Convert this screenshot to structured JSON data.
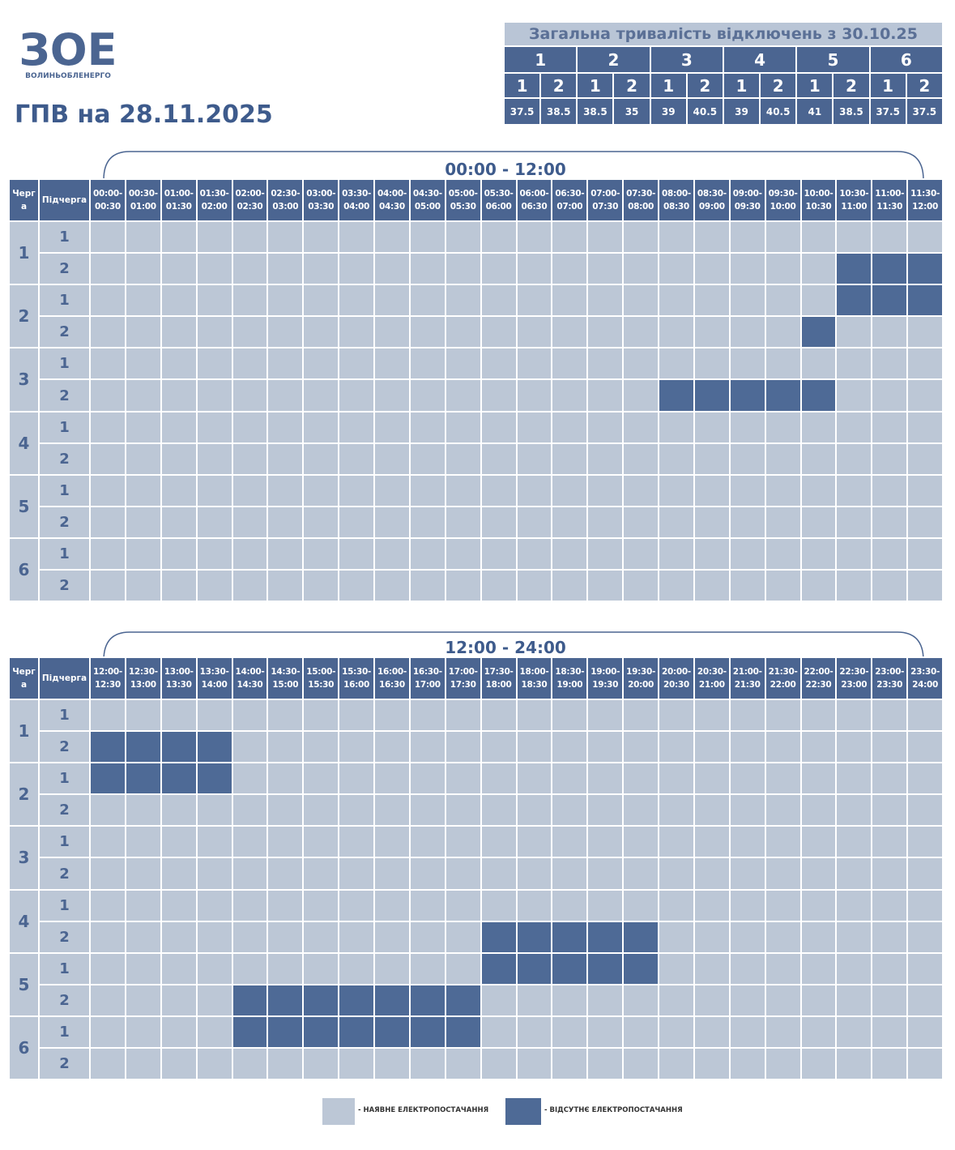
{
  "header": {
    "logo": "ЗОЕ",
    "logo_caption": "ВОЛИНЬОБЛЕНЕРГО",
    "title": "ГПВ на 28.11.2025"
  },
  "summary": {
    "title": "Загальна тривалість відключень з 30.10.25",
    "groups": [
      {
        "queue": "1",
        "subqueues": [
          {
            "name": "1",
            "hours": 37.5
          },
          {
            "name": "2",
            "hours": 38.5
          }
        ]
      },
      {
        "queue": "2",
        "subqueues": [
          {
            "name": "1",
            "hours": 38.5
          },
          {
            "name": "2",
            "hours": 35
          }
        ]
      },
      {
        "queue": "3",
        "subqueues": [
          {
            "name": "1",
            "hours": 39
          },
          {
            "name": "2",
            "hours": 40.5
          }
        ]
      },
      {
        "queue": "4",
        "subqueues": [
          {
            "name": "1",
            "hours": 39
          },
          {
            "name": "2",
            "hours": 40.5
          }
        ]
      },
      {
        "queue": "5",
        "subqueues": [
          {
            "name": "1",
            "hours": 41
          },
          {
            "name": "2",
            "hours": 38.5
          }
        ]
      },
      {
        "queue": "6",
        "subqueues": [
          {
            "name": "1",
            "hours": 37.5
          },
          {
            "name": "2",
            "hours": 37.5
          }
        ]
      }
    ]
  },
  "schedule": {
    "queue_label": "Черга",
    "subqueue_label": "Підчерга",
    "tables": [
      {
        "range": "00:00 - 12:00",
        "slots": [
          "00:00-00:30",
          "00:30-01:00",
          "01:00-01:30",
          "01:30-02:00",
          "02:00-02:30",
          "02:30-03:00",
          "03:00-03:30",
          "03:30-04:00",
          "04:00-04:30",
          "04:30-05:00",
          "05:00-05:30",
          "05:30-06:00",
          "06:00-06:30",
          "06:30-07:00",
          "07:00-07:30",
          "07:30-08:00",
          "08:00-08:30",
          "08:30-09:00",
          "09:00-09:30",
          "09:30-10:00",
          "10:00-10:30",
          "10:30-11:00",
          "11:00-11:30",
          "11:30-12:00"
        ],
        "groups": [
          {
            "queue": "1",
            "rows": [
              {
                "sub": "1",
                "state": [
                  0,
                  0,
                  0,
                  0,
                  0,
                  0,
                  0,
                  0,
                  0,
                  0,
                  0,
                  0,
                  0,
                  0,
                  0,
                  0,
                  0,
                  0,
                  0,
                  0,
                  0,
                  0,
                  0,
                  0
                ]
              },
              {
                "sub": "2",
                "state": [
                  0,
                  0,
                  0,
                  0,
                  0,
                  0,
                  0,
                  0,
                  0,
                  0,
                  0,
                  0,
                  0,
                  0,
                  0,
                  0,
                  0,
                  0,
                  0,
                  0,
                  0,
                  1,
                  1,
                  1
                ]
              }
            ]
          },
          {
            "queue": "2",
            "rows": [
              {
                "sub": "1",
                "state": [
                  0,
                  0,
                  0,
                  0,
                  0,
                  0,
                  0,
                  0,
                  0,
                  0,
                  0,
                  0,
                  0,
                  0,
                  0,
                  0,
                  0,
                  0,
                  0,
                  0,
                  0,
                  1,
                  1,
                  1
                ]
              },
              {
                "sub": "2",
                "state": [
                  0,
                  0,
                  0,
                  0,
                  0,
                  0,
                  0,
                  0,
                  0,
                  0,
                  0,
                  0,
                  0,
                  0,
                  0,
                  0,
                  0,
                  0,
                  0,
                  0,
                  1,
                  0,
                  0,
                  0
                ]
              }
            ]
          },
          {
            "queue": "3",
            "rows": [
              {
                "sub": "1",
                "state": [
                  0,
                  0,
                  0,
                  0,
                  0,
                  0,
                  0,
                  0,
                  0,
                  0,
                  0,
                  0,
                  0,
                  0,
                  0,
                  0,
                  0,
                  0,
                  0,
                  0,
                  0,
                  0,
                  0,
                  0
                ]
              },
              {
                "sub": "2",
                "state": [
                  0,
                  0,
                  0,
                  0,
                  0,
                  0,
                  0,
                  0,
                  0,
                  0,
                  0,
                  0,
                  0,
                  0,
                  0,
                  0,
                  1,
                  1,
                  1,
                  1,
                  1,
                  0,
                  0,
                  0
                ]
              }
            ]
          },
          {
            "queue": "4",
            "rows": [
              {
                "sub": "1",
                "state": [
                  0,
                  0,
                  0,
                  0,
                  0,
                  0,
                  0,
                  0,
                  0,
                  0,
                  0,
                  0,
                  0,
                  0,
                  0,
                  0,
                  0,
                  0,
                  0,
                  0,
                  0,
                  0,
                  0,
                  0
                ]
              },
              {
                "sub": "2",
                "state": [
                  0,
                  0,
                  0,
                  0,
                  0,
                  0,
                  0,
                  0,
                  0,
                  0,
                  0,
                  0,
                  0,
                  0,
                  0,
                  0,
                  0,
                  0,
                  0,
                  0,
                  0,
                  0,
                  0,
                  0
                ]
              }
            ]
          },
          {
            "queue": "5",
            "rows": [
              {
                "sub": "1",
                "state": [
                  0,
                  0,
                  0,
                  0,
                  0,
                  0,
                  0,
                  0,
                  0,
                  0,
                  0,
                  0,
                  0,
                  0,
                  0,
                  0,
                  0,
                  0,
                  0,
                  0,
                  0,
                  0,
                  0,
                  0
                ]
              },
              {
                "sub": "2",
                "state": [
                  0,
                  0,
                  0,
                  0,
                  0,
                  0,
                  0,
                  0,
                  0,
                  0,
                  0,
                  0,
                  0,
                  0,
                  0,
                  0,
                  0,
                  0,
                  0,
                  0,
                  0,
                  0,
                  0,
                  0
                ]
              }
            ]
          },
          {
            "queue": "6",
            "rows": [
              {
                "sub": "1",
                "state": [
                  0,
                  0,
                  0,
                  0,
                  0,
                  0,
                  0,
                  0,
                  0,
                  0,
                  0,
                  0,
                  0,
                  0,
                  0,
                  0,
                  0,
                  0,
                  0,
                  0,
                  0,
                  0,
                  0,
                  0
                ]
              },
              {
                "sub": "2",
                "state": [
                  0,
                  0,
                  0,
                  0,
                  0,
                  0,
                  0,
                  0,
                  0,
                  0,
                  0,
                  0,
                  0,
                  0,
                  0,
                  0,
                  0,
                  0,
                  0,
                  0,
                  0,
                  0,
                  0,
                  0
                ]
              }
            ]
          }
        ]
      },
      {
        "range": "12:00 - 24:00",
        "slots": [
          "12:00-12:30",
          "12:30-13:00",
          "13:00-13:30",
          "13:30-14:00",
          "14:00-14:30",
          "14:30-15:00",
          "15:00-15:30",
          "15:30-16:00",
          "16:00-16:30",
          "16:30-17:00",
          "17:00-17:30",
          "17:30-18:00",
          "18:00-18:30",
          "18:30-19:00",
          "19:00-19:30",
          "19:30-20:00",
          "20:00-20:30",
          "20:30-21:00",
          "21:00-21:30",
          "21:30-22:00",
          "22:00-22:30",
          "22:30-23:00",
          "23:00-23:30",
          "23:30-24:00"
        ],
        "groups": [
          {
            "queue": "1",
            "rows": [
              {
                "sub": "1",
                "state": [
                  0,
                  0,
                  0,
                  0,
                  0,
                  0,
                  0,
                  0,
                  0,
                  0,
                  0,
                  0,
                  0,
                  0,
                  0,
                  0,
                  0,
                  0,
                  0,
                  0,
                  0,
                  0,
                  0,
                  0
                ]
              },
              {
                "sub": "2",
                "state": [
                  1,
                  1,
                  1,
                  1,
                  0,
                  0,
                  0,
                  0,
                  0,
                  0,
                  0,
                  0,
                  0,
                  0,
                  0,
                  0,
                  0,
                  0,
                  0,
                  0,
                  0,
                  0,
                  0,
                  0
                ]
              }
            ]
          },
          {
            "queue": "2",
            "rows": [
              {
                "sub": "1",
                "state": [
                  1,
                  1,
                  1,
                  1,
                  0,
                  0,
                  0,
                  0,
                  0,
                  0,
                  0,
                  0,
                  0,
                  0,
                  0,
                  0,
                  0,
                  0,
                  0,
                  0,
                  0,
                  0,
                  0,
                  0
                ]
              },
              {
                "sub": "2",
                "state": [
                  0,
                  0,
                  0,
                  0,
                  0,
                  0,
                  0,
                  0,
                  0,
                  0,
                  0,
                  0,
                  0,
                  0,
                  0,
                  0,
                  0,
                  0,
                  0,
                  0,
                  0,
                  0,
                  0,
                  0
                ]
              }
            ]
          },
          {
            "queue": "3",
            "rows": [
              {
                "sub": "1",
                "state": [
                  0,
                  0,
                  0,
                  0,
                  0,
                  0,
                  0,
                  0,
                  0,
                  0,
                  0,
                  0,
                  0,
                  0,
                  0,
                  0,
                  0,
                  0,
                  0,
                  0,
                  0,
                  0,
                  0,
                  0
                ]
              },
              {
                "sub": "2",
                "state": [
                  0,
                  0,
                  0,
                  0,
                  0,
                  0,
                  0,
                  0,
                  0,
                  0,
                  0,
                  0,
                  0,
                  0,
                  0,
                  0,
                  0,
                  0,
                  0,
                  0,
                  0,
                  0,
                  0,
                  0
                ]
              }
            ]
          },
          {
            "queue": "4",
            "rows": [
              {
                "sub": "1",
                "state": [
                  0,
                  0,
                  0,
                  0,
                  0,
                  0,
                  0,
                  0,
                  0,
                  0,
                  0,
                  0,
                  0,
                  0,
                  0,
                  0,
                  0,
                  0,
                  0,
                  0,
                  0,
                  0,
                  0,
                  0
                ]
              },
              {
                "sub": "2",
                "state": [
                  0,
                  0,
                  0,
                  0,
                  0,
                  0,
                  0,
                  0,
                  0,
                  0,
                  0,
                  1,
                  1,
                  1,
                  1,
                  1,
                  0,
                  0,
                  0,
                  0,
                  0,
                  0,
                  0,
                  0
                ]
              }
            ]
          },
          {
            "queue": "5",
            "rows": [
              {
                "sub": "1",
                "state": [
                  0,
                  0,
                  0,
                  0,
                  0,
                  0,
                  0,
                  0,
                  0,
                  0,
                  0,
                  1,
                  1,
                  1,
                  1,
                  1,
                  0,
                  0,
                  0,
                  0,
                  0,
                  0,
                  0,
                  0
                ]
              },
              {
                "sub": "2",
                "state": [
                  0,
                  0,
                  0,
                  0,
                  1,
                  1,
                  1,
                  1,
                  1,
                  1,
                  1,
                  0,
                  0,
                  0,
                  0,
                  0,
                  0,
                  0,
                  0,
                  0,
                  0,
                  0,
                  0,
                  0
                ]
              }
            ]
          },
          {
            "queue": "6",
            "rows": [
              {
                "sub": "1",
                "state": [
                  0,
                  0,
                  0,
                  0,
                  1,
                  1,
                  1,
                  1,
                  1,
                  1,
                  1,
                  0,
                  0,
                  0,
                  0,
                  0,
                  0,
                  0,
                  0,
                  0,
                  0,
                  0,
                  0,
                  0
                ]
              },
              {
                "sub": "2",
                "state": [
                  0,
                  0,
                  0,
                  0,
                  0,
                  0,
                  0,
                  0,
                  0,
                  0,
                  0,
                  0,
                  0,
                  0,
                  0,
                  0,
                  0,
                  0,
                  0,
                  0,
                  0,
                  0,
                  0,
                  0
                ]
              }
            ]
          }
        ]
      }
    ]
  },
  "legend": {
    "items": [
      {
        "label": "- НАЯВНЕ ЕЛЕКТРОПОСТАЧАННЯ",
        "color": "#bcc7d6"
      },
      {
        "label": "- ВІДСУТНЄ ЕЛЕКТРОПОСТАЧАННЯ",
        "color": "#4e6a96"
      }
    ]
  }
}
